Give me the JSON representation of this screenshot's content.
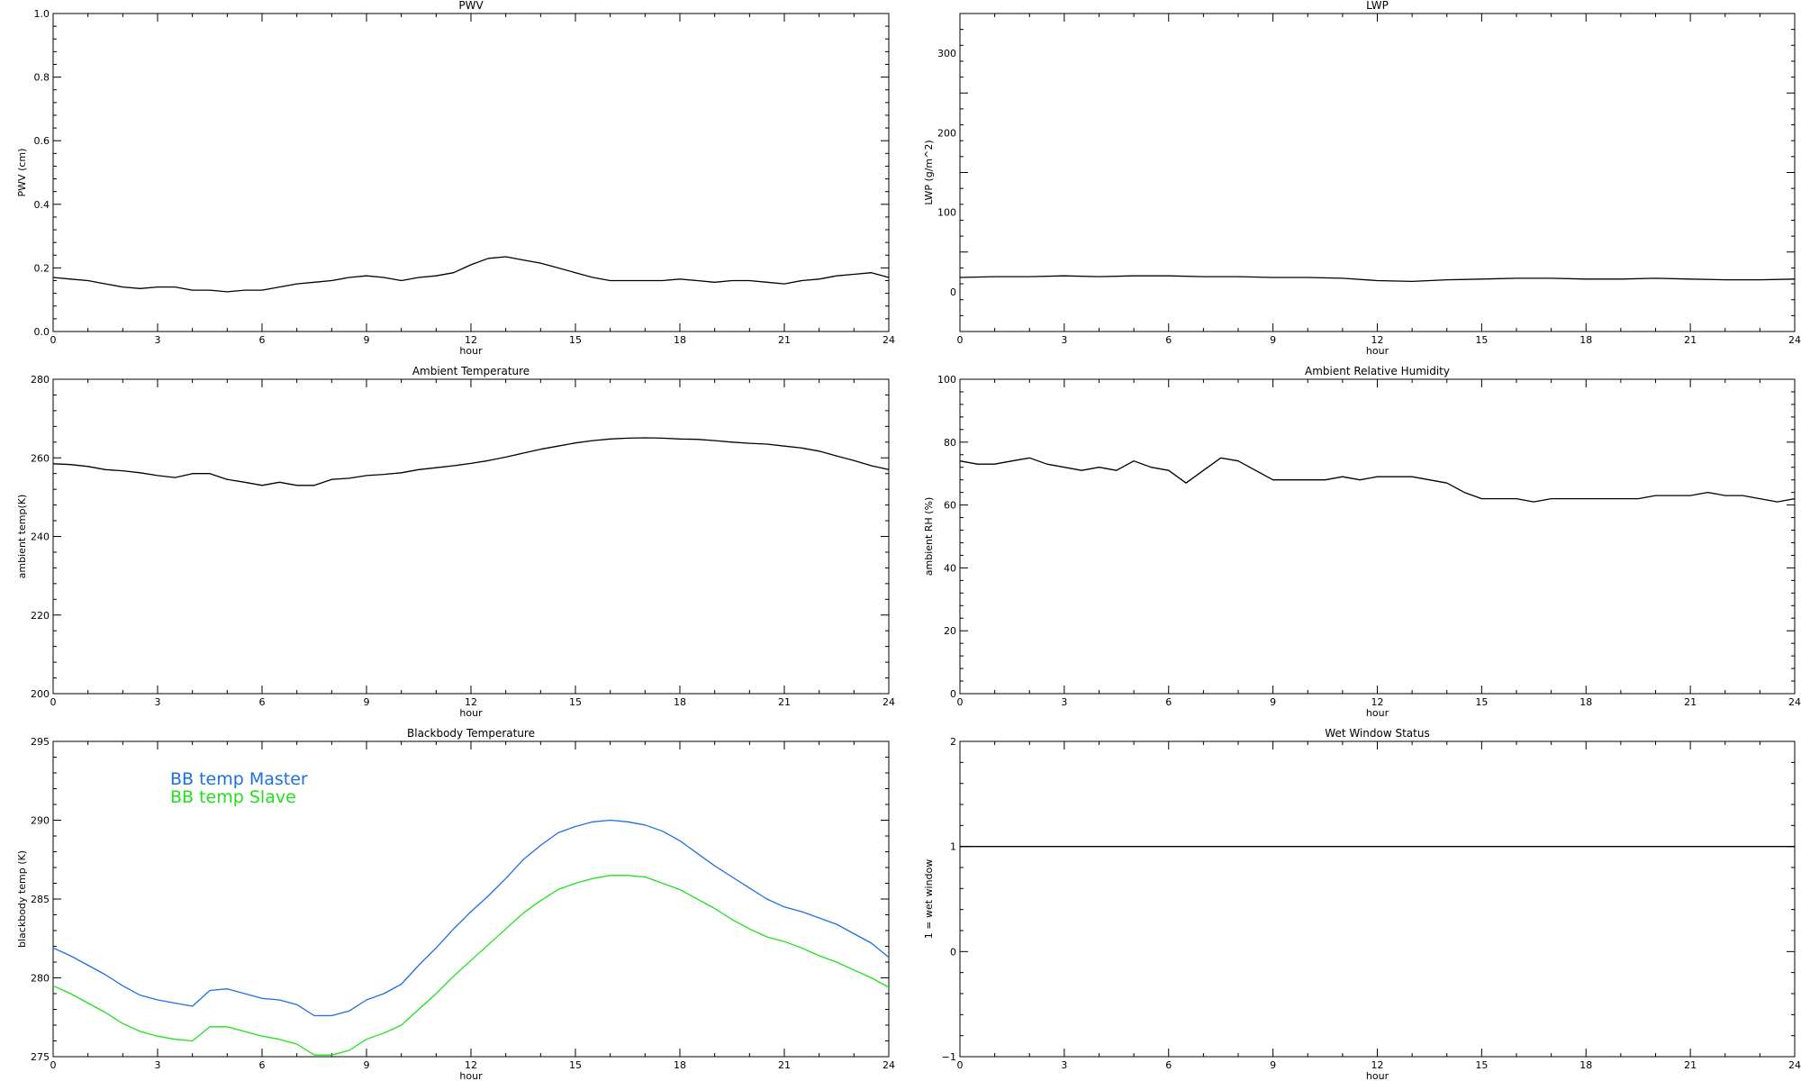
{
  "chart_data": [
    {
      "id": "pwv",
      "type": "line",
      "title": "PWV",
      "xlabel": "hour",
      "ylabel": "PWV (cm)",
      "xlim": [
        0,
        24
      ],
      "ylim": [
        0.0,
        1.0
      ],
      "xticks": [
        0,
        3,
        6,
        9,
        12,
        15,
        18,
        21,
        24
      ],
      "yticks": [
        0.0,
        0.2,
        0.4,
        0.6,
        0.8,
        1.0
      ],
      "xtick_labels": [
        "0",
        "3",
        "6",
        "9",
        "12",
        "15",
        "18",
        "21",
        "24"
      ],
      "ytick_labels": [
        "0.0",
        "0.2",
        "0.4",
        "0.6",
        "0.8",
        "1.0"
      ],
      "series": [
        {
          "color": "#000000",
          "x": [
            0,
            0.5,
            1,
            1.5,
            2,
            2.5,
            3,
            3.5,
            4,
            4.5,
            5,
            5.5,
            6,
            6.5,
            7,
            7.5,
            8,
            8.5,
            9,
            9.5,
            10,
            10.5,
            11,
            11.5,
            12,
            12.5,
            13,
            13.5,
            14,
            14.5,
            15,
            15.5,
            16,
            16.5,
            17,
            17.5,
            18,
            18.5,
            19,
            19.5,
            20,
            20.5,
            21,
            21.5,
            22,
            22.5,
            23,
            23.5,
            24
          ],
          "y": [
            0.17,
            0.165,
            0.16,
            0.15,
            0.14,
            0.135,
            0.14,
            0.14,
            0.13,
            0.13,
            0.125,
            0.13,
            0.13,
            0.14,
            0.15,
            0.155,
            0.16,
            0.17,
            0.175,
            0.17,
            0.16,
            0.17,
            0.175,
            0.185,
            0.21,
            0.23,
            0.235,
            0.225,
            0.215,
            0.2,
            0.185,
            0.17,
            0.16,
            0.16,
            0.16,
            0.16,
            0.165,
            0.16,
            0.155,
            0.16,
            0.16,
            0.155,
            0.15,
            0.16,
            0.165,
            0.175,
            0.18,
            0.185,
            0.17
          ]
        }
      ]
    },
    {
      "id": "lwp",
      "type": "line",
      "title": "LWP",
      "xlabel": "hour",
      "ylabel": "LWP (g/m^2)",
      "xlim": [
        0,
        24
      ],
      "ylim": [
        -50,
        350
      ],
      "xticks": [
        0,
        3,
        6,
        9,
        12,
        15,
        18,
        21,
        24
      ],
      "yticks": [
        0,
        100,
        200,
        300
      ],
      "xtick_labels": [
        "0",
        "3",
        "6",
        "9",
        "12",
        "15",
        "18",
        "21",
        "24"
      ],
      "ytick_labels": [
        "0",
        "100",
        "200",
        "300"
      ],
      "series": [
        {
          "color": "#000000",
          "x": [
            0,
            1,
            2,
            3,
            4,
            5,
            6,
            7,
            8,
            9,
            10,
            11,
            12,
            13,
            14,
            15,
            16,
            17,
            18,
            19,
            20,
            21,
            22,
            23,
            24
          ],
          "y": [
            18,
            19,
            19,
            20,
            19,
            20,
            20,
            19,
            19,
            18,
            18,
            17,
            14,
            13,
            15,
            16,
            17,
            17,
            16,
            16,
            17,
            16,
            15,
            15,
            16
          ]
        }
      ]
    },
    {
      "id": "ambient-temperature",
      "type": "line",
      "title": "Ambient Temperature",
      "xlabel": "hour",
      "ylabel": "ambient temp(K)",
      "xlim": [
        0,
        24
      ],
      "ylim": [
        200,
        280
      ],
      "xticks": [
        0,
        3,
        6,
        9,
        12,
        15,
        18,
        21,
        24
      ],
      "yticks": [
        200,
        220,
        240,
        260,
        280
      ],
      "xtick_labels": [
        "0",
        "3",
        "6",
        "9",
        "12",
        "15",
        "18",
        "21",
        "24"
      ],
      "ytick_labels": [
        "200",
        "220",
        "240",
        "260",
        "280"
      ],
      "series": [
        {
          "color": "#000000",
          "x": [
            0,
            0.5,
            1,
            1.5,
            2,
            2.5,
            3,
            3.5,
            4,
            4.5,
            5,
            5.5,
            6,
            6.5,
            7,
            7.5,
            8,
            8.5,
            9,
            9.5,
            10,
            10.5,
            11,
            11.5,
            12,
            12.5,
            13,
            13.5,
            14,
            14.5,
            15,
            15.5,
            16,
            16.5,
            17,
            17.5,
            18,
            18.5,
            19,
            19.5,
            20,
            20.5,
            21,
            21.5,
            22,
            22.5,
            23,
            23.5,
            24
          ],
          "y": [
            258.5,
            258.3,
            257.8,
            257.0,
            256.7,
            256.2,
            255.5,
            255.0,
            256.0,
            256.0,
            254.5,
            253.8,
            253.0,
            253.8,
            253.0,
            253.0,
            254.5,
            254.8,
            255.5,
            255.8,
            256.2,
            257.0,
            257.5,
            258.0,
            258.6,
            259.3,
            260.2,
            261.2,
            262.2,
            263.0,
            263.8,
            264.4,
            264.8,
            265.0,
            265.1,
            265.0,
            264.8,
            264.7,
            264.4,
            264.0,
            263.7,
            263.5,
            263.0,
            262.5,
            261.7,
            260.5,
            259.3,
            258.0,
            257.0
          ]
        }
      ]
    },
    {
      "id": "ambient-relative-humidity",
      "type": "line",
      "title": "Ambient Relative Humidity",
      "xlabel": "hour",
      "ylabel": "ambient RH (%)",
      "xlim": [
        0,
        24
      ],
      "ylim": [
        0,
        100
      ],
      "xticks": [
        0,
        3,
        6,
        9,
        12,
        15,
        18,
        21,
        24
      ],
      "yticks": [
        0,
        20,
        40,
        60,
        80,
        100
      ],
      "xtick_labels": [
        "0",
        "3",
        "6",
        "9",
        "12",
        "15",
        "18",
        "21",
        "24"
      ],
      "ytick_labels": [
        "0",
        "20",
        "40",
        "60",
        "80",
        "100"
      ],
      "series": [
        {
          "color": "#000000",
          "x": [
            0,
            0.5,
            1,
            1.5,
            2,
            2.5,
            3,
            3.5,
            4,
            4.5,
            5,
            5.5,
            6,
            6.5,
            7,
            7.5,
            8,
            8.5,
            9,
            9.5,
            10,
            10.5,
            11,
            11.5,
            12,
            12.5,
            13,
            13.5,
            14,
            14.5,
            15,
            15.5,
            16,
            16.5,
            17,
            17.5,
            18,
            18.5,
            19,
            19.5,
            20,
            20.5,
            21,
            21.5,
            22,
            22.5,
            23,
            23.5,
            24
          ],
          "y": [
            74,
            73,
            73,
            74,
            75,
            73,
            72,
            71,
            72,
            71,
            74,
            72,
            71,
            67,
            71,
            75,
            74,
            71,
            68,
            68,
            68,
            68,
            69,
            68,
            69,
            69,
            69,
            68,
            67,
            64,
            62,
            62,
            62,
            61,
            62,
            62,
            62,
            62,
            62,
            62,
            63,
            63,
            63,
            64,
            63,
            63,
            62,
            61,
            62
          ]
        }
      ]
    },
    {
      "id": "blackbody-temperature",
      "type": "line",
      "title": "Blackbody Temperature",
      "xlabel": "hour",
      "ylabel": "blackbody temp (K)",
      "xlim": [
        0,
        24
      ],
      "ylim": [
        275,
        295
      ],
      "xticks": [
        0,
        3,
        6,
        9,
        12,
        15,
        18,
        21,
        24
      ],
      "yticks": [
        275,
        280,
        285,
        290,
        295
      ],
      "xtick_labels": [
        "0",
        "3",
        "6",
        "9",
        "12",
        "15",
        "18",
        "21",
        "24"
      ],
      "ytick_labels": [
        "275",
        "280",
        "285",
        "290",
        "295"
      ],
      "legend": [
        "BB temp Master",
        "BB temp Slave"
      ],
      "series": [
        {
          "name": "BB temp Master",
          "color": "#1e6fe6",
          "x": [
            0,
            0.5,
            1,
            1.5,
            2,
            2.5,
            3,
            3.5,
            4,
            4.5,
            5,
            5.5,
            6,
            6.5,
            7,
            7.5,
            8,
            8.5,
            9,
            9.5,
            10,
            10.5,
            11,
            11.5,
            12,
            12.5,
            13,
            13.5,
            14,
            14.5,
            15,
            15.5,
            16,
            16.5,
            17,
            17.5,
            18,
            18.5,
            19,
            19.5,
            20,
            20.5,
            21,
            21.5,
            22,
            22.5,
            23,
            23.5,
            24
          ],
          "y": [
            281.9,
            281.4,
            280.8,
            280.2,
            279.5,
            278.9,
            278.6,
            278.4,
            278.2,
            279.2,
            279.3,
            279.0,
            278.7,
            278.6,
            278.3,
            277.6,
            277.6,
            277.9,
            278.6,
            279.0,
            279.6,
            280.8,
            281.9,
            283.1,
            284.2,
            285.2,
            286.3,
            287.5,
            288.4,
            289.2,
            289.6,
            289.9,
            290.0,
            289.9,
            289.7,
            289.3,
            288.7,
            287.9,
            287.1,
            286.4,
            285.7,
            285.0,
            284.5,
            284.2,
            283.8,
            283.4,
            282.8,
            282.2,
            281.3
          ]
        },
        {
          "name": "BB temp Slave",
          "color": "#22e01c",
          "x": [
            0,
            0.5,
            1,
            1.5,
            2,
            2.5,
            3,
            3.5,
            4,
            4.5,
            5,
            5.5,
            6,
            6.5,
            7,
            7.5,
            8,
            8.5,
            9,
            9.5,
            10,
            10.5,
            11,
            11.5,
            12,
            12.5,
            13,
            13.5,
            14,
            14.5,
            15,
            15.5,
            16,
            16.5,
            17,
            17.5,
            18,
            18.5,
            19,
            19.5,
            20,
            20.5,
            21,
            21.5,
            22,
            22.5,
            23,
            23.5,
            24
          ],
          "y": [
            279.5,
            279.0,
            278.4,
            277.8,
            277.1,
            276.6,
            276.3,
            276.1,
            276.0,
            276.9,
            276.9,
            276.6,
            276.3,
            276.1,
            275.8,
            275.1,
            275.1,
            275.4,
            276.1,
            276.5,
            277.0,
            278.0,
            279.0,
            280.1,
            281.1,
            282.1,
            283.1,
            284.1,
            284.9,
            285.6,
            286.0,
            286.3,
            286.5,
            286.5,
            286.4,
            286.0,
            285.6,
            285.0,
            284.4,
            283.7,
            283.1,
            282.6,
            282.3,
            281.9,
            281.4,
            281.0,
            280.5,
            280.0,
            279.4
          ]
        }
      ]
    },
    {
      "id": "wet-window-status",
      "type": "line",
      "title": "Wet Window Status",
      "xlabel": "hour",
      "ylabel": "1 = wet window",
      "xlim": [
        0,
        24
      ],
      "ylim": [
        -1,
        2
      ],
      "xticks": [
        0,
        3,
        6,
        9,
        12,
        15,
        18,
        21,
        24
      ],
      "yticks": [
        -1,
        0,
        1,
        2
      ],
      "xtick_labels": [
        "0",
        "3",
        "6",
        "9",
        "12",
        "15",
        "18",
        "21",
        "24"
      ],
      "ytick_labels": [
        "−1",
        "0",
        "1",
        "2"
      ],
      "series": [
        {
          "color": "#000000",
          "x": [
            0,
            24
          ],
          "y": [
            1,
            1
          ]
        }
      ]
    }
  ]
}
